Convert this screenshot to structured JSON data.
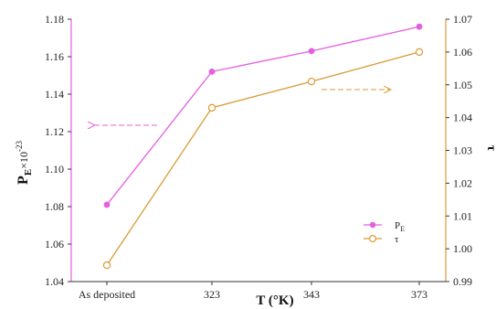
{
  "chart_data": {
    "type": "line",
    "categories": [
      "As deposited",
      "323",
      "343",
      "373"
    ],
    "xlabel": "T (°K)",
    "ylabel_left": {
      "main": "P",
      "sub": "E",
      "suffix": "×10",
      "sup": "-23"
    },
    "ylabel_right": "τ",
    "ylim_left": [
      1.04,
      1.18
    ],
    "yticks_left": [
      "1.04",
      "1.06",
      "1.08",
      "1.10",
      "1.12",
      "1.14",
      "1.16",
      "1.18"
    ],
    "ylim_right": [
      0.99,
      1.07
    ],
    "yticks_right": [
      "0.99",
      "1.00",
      "1.01",
      "1.02",
      "1.03",
      "1.04",
      "1.05",
      "1.06",
      "1.07"
    ],
    "series": [
      {
        "name": "P",
        "name_sub": "E",
        "axis": "left",
        "values": [
          1.081,
          1.152,
          1.163,
          1.176
        ],
        "color": "#e35ee3",
        "marker": "filled-circle"
      },
      {
        "name": "τ",
        "axis": "right",
        "values": [
          0.995,
          1.043,
          1.051,
          1.06
        ],
        "color": "#d99b35",
        "marker": "open-circle"
      }
    ],
    "annotations": [
      {
        "type": "dashed-arrow",
        "points_to": "left axis",
        "series": "P"
      },
      {
        "type": "dashed-arrow",
        "points_to": "right axis",
        "series": "τ"
      }
    ],
    "grid": false,
    "legend_position": "bottom-right"
  }
}
